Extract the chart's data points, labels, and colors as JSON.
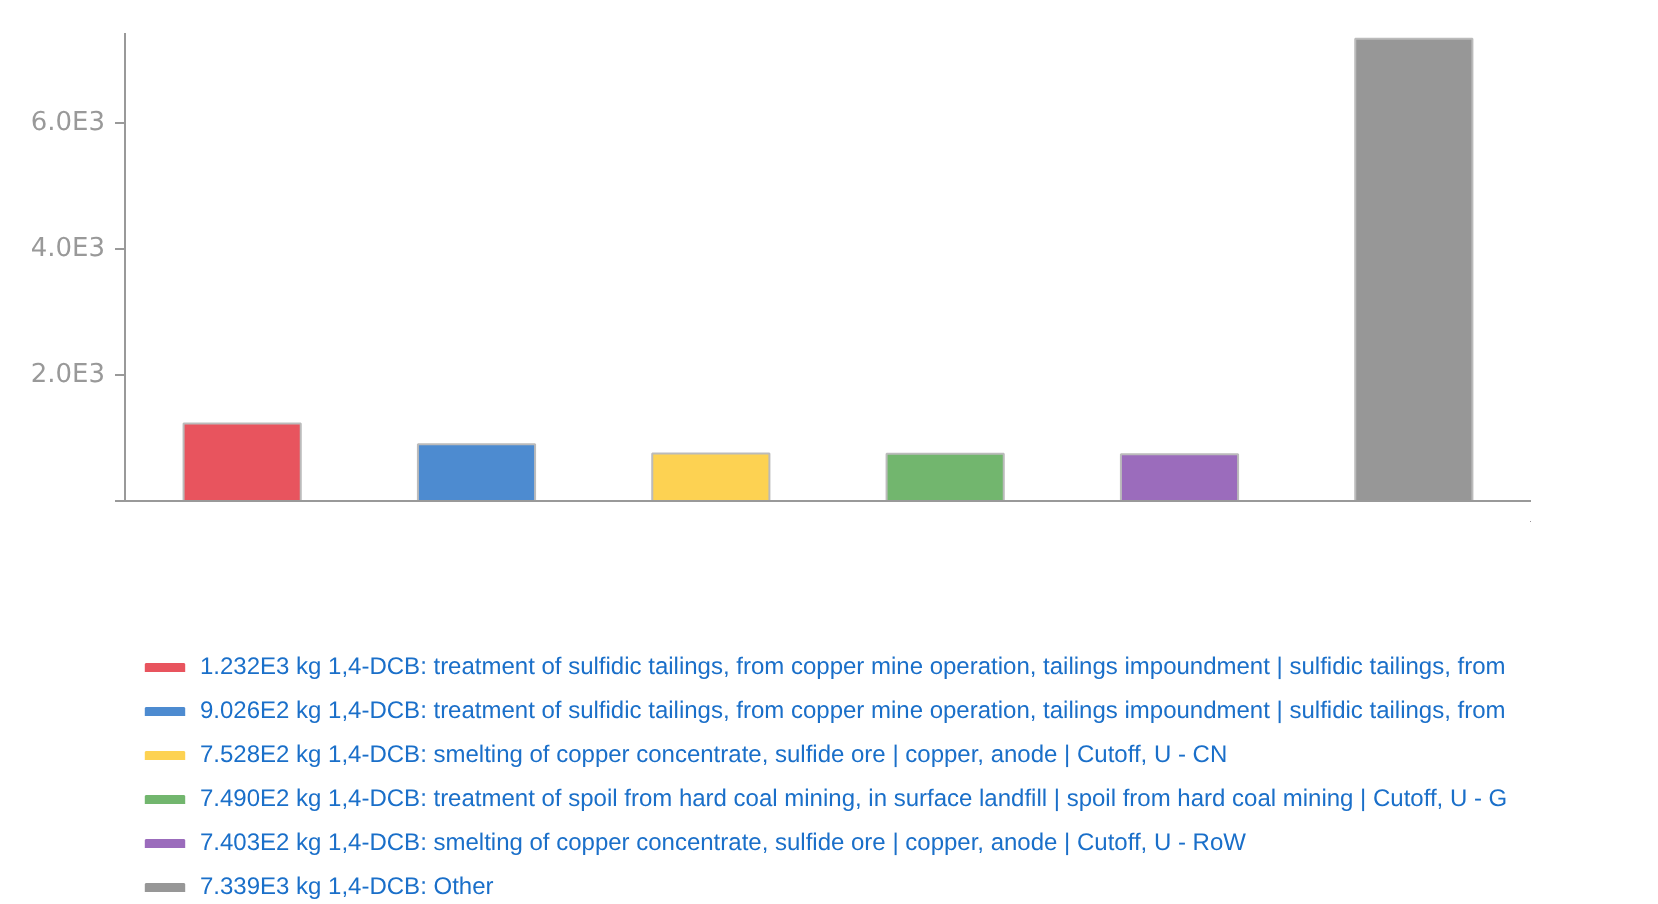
{
  "chart_data": {
    "type": "bar",
    "categories": [
      null,
      null,
      null,
      null,
      null,
      null
    ],
    "series": [
      {
        "name": "1.232E3 kg 1,4-DCB: treatment of sulfidic tailings, from copper mine operation, tailings impoundment | sulfidic tailings, from",
        "color": "#e8545e",
        "values": [
          1232,
          null,
          null,
          null,
          null,
          null
        ]
      },
      {
        "name": "9.026E2 kg 1,4-DCB: treatment of sulfidic tailings, from copper mine operation, tailings impoundment | sulfidic tailings, from",
        "color": "#4d8bd0",
        "values": [
          null,
          902.6,
          null,
          null,
          null,
          null
        ]
      },
      {
        "name": "7.528E2 kg 1,4-DCB: smelting of copper concentrate, sulfide ore | copper, anode | Cutoff, U - CN",
        "color": "#fdd252",
        "values": [
          null,
          null,
          752.8,
          null,
          null,
          null
        ]
      },
      {
        "name": "7.490E2 kg 1,4-DCB: treatment of spoil from hard coal mining, in surface landfill | spoil from hard coal mining | Cutoff, U - G",
        "color": "#72b66e",
        "values": [
          null,
          null,
          null,
          749.0,
          null,
          null
        ]
      },
      {
        "name": "7.403E2 kg 1,4-DCB: smelting of copper concentrate, sulfide ore | copper, anode | Cutoff, U - RoW",
        "color": "#9b6cbc",
        "values": [
          null,
          null,
          null,
          null,
          740.3,
          null
        ]
      },
      {
        "name": "7.339E3 kg 1,4-DCB: Other",
        "color": "#979797",
        "values": [
          null,
          null,
          null,
          null,
          null,
          7339
        ]
      }
    ],
    "ylim": [
      0,
      7430
    ],
    "yticks": [
      {
        "value": 0,
        "label": null
      },
      {
        "value": 2000,
        "label": "2.0E3"
      },
      {
        "value": 4000,
        "label": "4.0E3"
      },
      {
        "value": 6000,
        "label": "6.0E3"
      }
    ],
    "grid": false,
    "legend": "bottom"
  }
}
